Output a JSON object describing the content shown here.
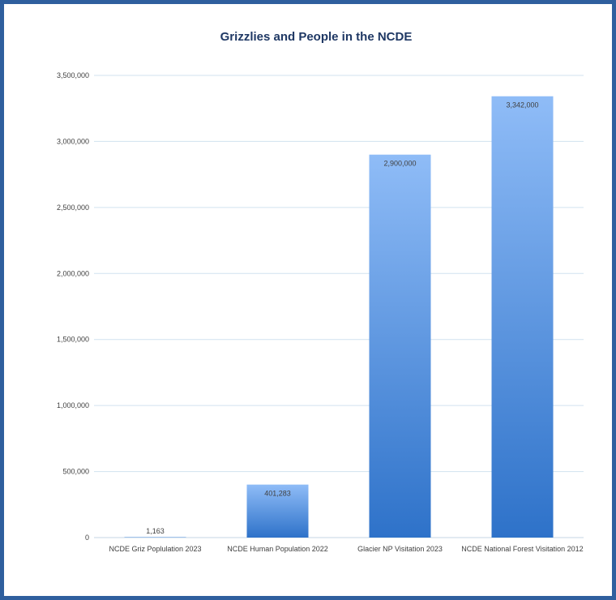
{
  "chart_data": {
    "type": "bar",
    "title": "Grizzlies and People in the NCDE",
    "xlabel": "",
    "ylabel": "",
    "categories": [
      "NCDE Griz Poplulation 2023",
      "NCDE Human Population 2022",
      "Glacier NP Visitation 2023",
      "NCDE National Forest Visitation 2012"
    ],
    "values": [
      1163,
      401283,
      2900000,
      3342000
    ],
    "data_labels": [
      "1,163",
      "401,283",
      "2,900,000",
      "3,342,000"
    ],
    "ylim": [
      0,
      3500000
    ],
    "y_ticks": [
      0,
      500000,
      1000000,
      1500000,
      2000000,
      2500000,
      3000000,
      3500000
    ],
    "y_tick_labels": [
      "0",
      "500,000",
      "1,000,000",
      "1,500,000",
      "2,000,000",
      "2,500,000",
      "3,000,000",
      "3,500,000"
    ],
    "grid": true,
    "legend": "none",
    "colors": {
      "bar_top": "#8fbcf7",
      "bar_bottom": "#2e72c9",
      "frame": "#2f5f9e",
      "title": "#1f3864",
      "grid": "#d0e2ef"
    }
  }
}
